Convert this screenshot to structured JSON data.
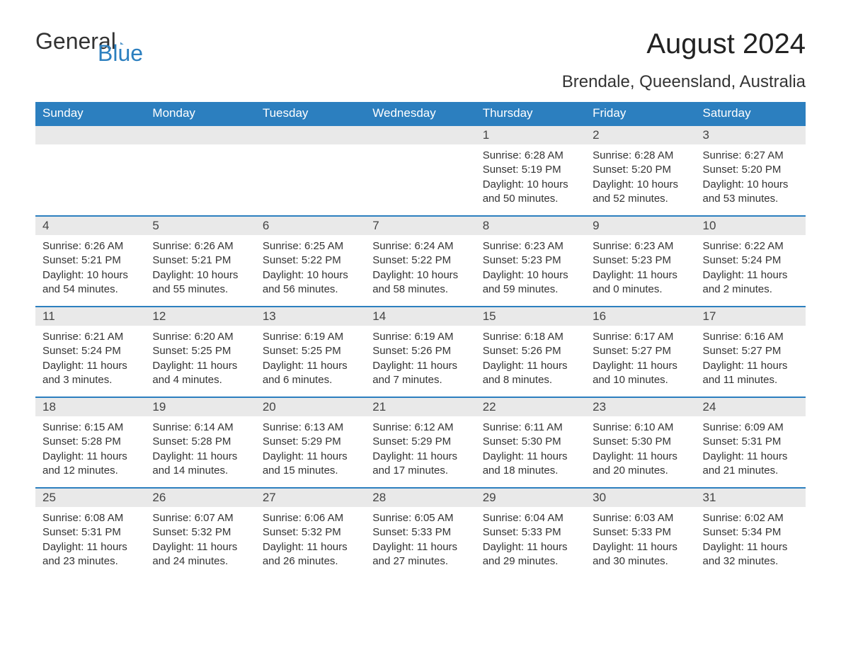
{
  "logo": {
    "text_dark": "General",
    "text_blue": "Blue"
  },
  "title": "August 2024",
  "location": "Brendale, Queensland, Australia",
  "colors": {
    "header_bg": "#2c7fbf",
    "header_text": "#ffffff",
    "daynum_bg": "#e9e9e9",
    "border": "#2c7fbf",
    "text": "#333333",
    "logo_blue": "#2c7fbf"
  },
  "typography": {
    "title_fontsize": 40,
    "location_fontsize": 24,
    "header_fontsize": 17,
    "body_fontsize": 15
  },
  "layout": {
    "columns": 7,
    "rows": 5
  },
  "daysOfWeek": [
    "Sunday",
    "Monday",
    "Tuesday",
    "Wednesday",
    "Thursday",
    "Friday",
    "Saturday"
  ],
  "weeks": [
    [
      {
        "empty": true
      },
      {
        "empty": true
      },
      {
        "empty": true
      },
      {
        "empty": true
      },
      {
        "day": "1",
        "sunrise": "Sunrise: 6:28 AM",
        "sunset": "Sunset: 5:19 PM",
        "daylight": "Daylight: 10 hours and 50 minutes."
      },
      {
        "day": "2",
        "sunrise": "Sunrise: 6:28 AM",
        "sunset": "Sunset: 5:20 PM",
        "daylight": "Daylight: 10 hours and 52 minutes."
      },
      {
        "day": "3",
        "sunrise": "Sunrise: 6:27 AM",
        "sunset": "Sunset: 5:20 PM",
        "daylight": "Daylight: 10 hours and 53 minutes."
      }
    ],
    [
      {
        "day": "4",
        "sunrise": "Sunrise: 6:26 AM",
        "sunset": "Sunset: 5:21 PM",
        "daylight": "Daylight: 10 hours and 54 minutes."
      },
      {
        "day": "5",
        "sunrise": "Sunrise: 6:26 AM",
        "sunset": "Sunset: 5:21 PM",
        "daylight": "Daylight: 10 hours and 55 minutes."
      },
      {
        "day": "6",
        "sunrise": "Sunrise: 6:25 AM",
        "sunset": "Sunset: 5:22 PM",
        "daylight": "Daylight: 10 hours and 56 minutes."
      },
      {
        "day": "7",
        "sunrise": "Sunrise: 6:24 AM",
        "sunset": "Sunset: 5:22 PM",
        "daylight": "Daylight: 10 hours and 58 minutes."
      },
      {
        "day": "8",
        "sunrise": "Sunrise: 6:23 AM",
        "sunset": "Sunset: 5:23 PM",
        "daylight": "Daylight: 10 hours and 59 minutes."
      },
      {
        "day": "9",
        "sunrise": "Sunrise: 6:23 AM",
        "sunset": "Sunset: 5:23 PM",
        "daylight": "Daylight: 11 hours and 0 minutes."
      },
      {
        "day": "10",
        "sunrise": "Sunrise: 6:22 AM",
        "sunset": "Sunset: 5:24 PM",
        "daylight": "Daylight: 11 hours and 2 minutes."
      }
    ],
    [
      {
        "day": "11",
        "sunrise": "Sunrise: 6:21 AM",
        "sunset": "Sunset: 5:24 PM",
        "daylight": "Daylight: 11 hours and 3 minutes."
      },
      {
        "day": "12",
        "sunrise": "Sunrise: 6:20 AM",
        "sunset": "Sunset: 5:25 PM",
        "daylight": "Daylight: 11 hours and 4 minutes."
      },
      {
        "day": "13",
        "sunrise": "Sunrise: 6:19 AM",
        "sunset": "Sunset: 5:25 PM",
        "daylight": "Daylight: 11 hours and 6 minutes."
      },
      {
        "day": "14",
        "sunrise": "Sunrise: 6:19 AM",
        "sunset": "Sunset: 5:26 PM",
        "daylight": "Daylight: 11 hours and 7 minutes."
      },
      {
        "day": "15",
        "sunrise": "Sunrise: 6:18 AM",
        "sunset": "Sunset: 5:26 PM",
        "daylight": "Daylight: 11 hours and 8 minutes."
      },
      {
        "day": "16",
        "sunrise": "Sunrise: 6:17 AM",
        "sunset": "Sunset: 5:27 PM",
        "daylight": "Daylight: 11 hours and 10 minutes."
      },
      {
        "day": "17",
        "sunrise": "Sunrise: 6:16 AM",
        "sunset": "Sunset: 5:27 PM",
        "daylight": "Daylight: 11 hours and 11 minutes."
      }
    ],
    [
      {
        "day": "18",
        "sunrise": "Sunrise: 6:15 AM",
        "sunset": "Sunset: 5:28 PM",
        "daylight": "Daylight: 11 hours and 12 minutes."
      },
      {
        "day": "19",
        "sunrise": "Sunrise: 6:14 AM",
        "sunset": "Sunset: 5:28 PM",
        "daylight": "Daylight: 11 hours and 14 minutes."
      },
      {
        "day": "20",
        "sunrise": "Sunrise: 6:13 AM",
        "sunset": "Sunset: 5:29 PM",
        "daylight": "Daylight: 11 hours and 15 minutes."
      },
      {
        "day": "21",
        "sunrise": "Sunrise: 6:12 AM",
        "sunset": "Sunset: 5:29 PM",
        "daylight": "Daylight: 11 hours and 17 minutes."
      },
      {
        "day": "22",
        "sunrise": "Sunrise: 6:11 AM",
        "sunset": "Sunset: 5:30 PM",
        "daylight": "Daylight: 11 hours and 18 minutes."
      },
      {
        "day": "23",
        "sunrise": "Sunrise: 6:10 AM",
        "sunset": "Sunset: 5:30 PM",
        "daylight": "Daylight: 11 hours and 20 minutes."
      },
      {
        "day": "24",
        "sunrise": "Sunrise: 6:09 AM",
        "sunset": "Sunset: 5:31 PM",
        "daylight": "Daylight: 11 hours and 21 minutes."
      }
    ],
    [
      {
        "day": "25",
        "sunrise": "Sunrise: 6:08 AM",
        "sunset": "Sunset: 5:31 PM",
        "daylight": "Daylight: 11 hours and 23 minutes."
      },
      {
        "day": "26",
        "sunrise": "Sunrise: 6:07 AM",
        "sunset": "Sunset: 5:32 PM",
        "daylight": "Daylight: 11 hours and 24 minutes."
      },
      {
        "day": "27",
        "sunrise": "Sunrise: 6:06 AM",
        "sunset": "Sunset: 5:32 PM",
        "daylight": "Daylight: 11 hours and 26 minutes."
      },
      {
        "day": "28",
        "sunrise": "Sunrise: 6:05 AM",
        "sunset": "Sunset: 5:33 PM",
        "daylight": "Daylight: 11 hours and 27 minutes."
      },
      {
        "day": "29",
        "sunrise": "Sunrise: 6:04 AM",
        "sunset": "Sunset: 5:33 PM",
        "daylight": "Daylight: 11 hours and 29 minutes."
      },
      {
        "day": "30",
        "sunrise": "Sunrise: 6:03 AM",
        "sunset": "Sunset: 5:33 PM",
        "daylight": "Daylight: 11 hours and 30 minutes."
      },
      {
        "day": "31",
        "sunrise": "Sunrise: 6:02 AM",
        "sunset": "Sunset: 5:34 PM",
        "daylight": "Daylight: 11 hours and 32 minutes."
      }
    ]
  ]
}
